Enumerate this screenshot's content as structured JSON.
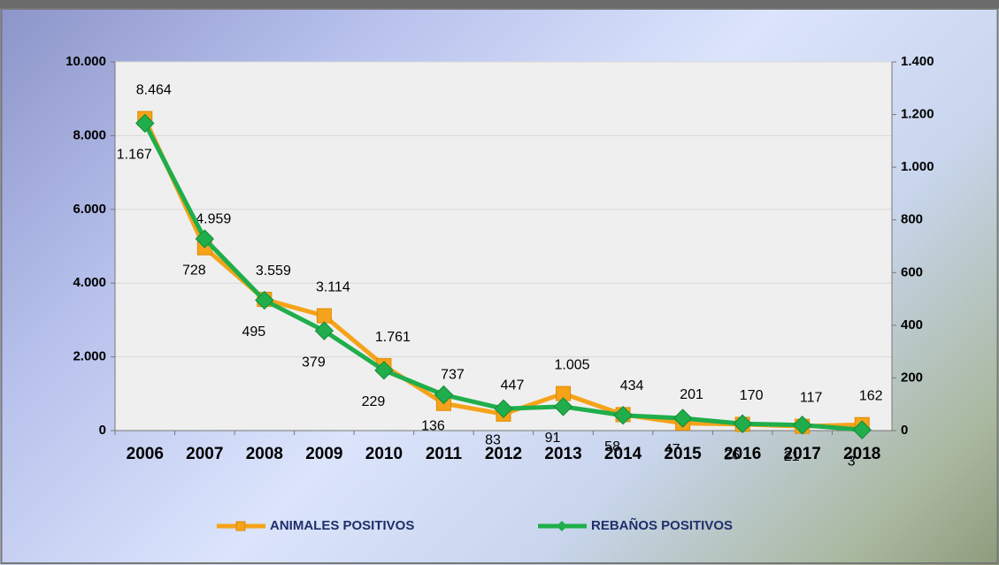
{
  "chart_data": {
    "type": "line",
    "categories": [
      "2006",
      "2007",
      "2008",
      "2009",
      "2010",
      "2011",
      "2012",
      "2013",
      "2014",
      "2015",
      "2016",
      "2017",
      "2018"
    ],
    "series": [
      {
        "name": "ANIMALES POSITIVOS",
        "color": "#f5a31a",
        "values": [
          8464,
          4959,
          3559,
          3114,
          1761,
          737,
          447,
          1005,
          434,
          201,
          170,
          117,
          162
        ],
        "value_labels": [
          "8.464",
          "4.959",
          "3.559",
          "3.114",
          "1.761",
          "737",
          "447",
          "1.005",
          "434",
          "201",
          "170",
          "117",
          "162"
        ]
      },
      {
        "name": "REBAÑOS POSITIVOS",
        "color": "#1fae4b",
        "axis": "y2",
        "values": [
          1167,
          728,
          495,
          379,
          229,
          136,
          83,
          91,
          58,
          47,
          26,
          21,
          3
        ],
        "value_labels": [
          "1.167",
          "728",
          "495",
          "379",
          "229",
          "136",
          "83",
          "91",
          "58",
          "47",
          "26",
          "21",
          "3"
        ]
      }
    ],
    "ylim": [
      0,
      10000
    ],
    "yticks": [
      0,
      {
        "value": 2000,
        "label": "2.000"
      },
      {
        "value": 4000,
        "label": "4.000"
      },
      {
        "value": 6000,
        "label": "6.000"
      },
      {
        "value": 8000,
        "label": "8.000"
      },
      {
        "value": 10000,
        "label": "10.000"
      }
    ],
    "y2lim": [
      0,
      1400
    ],
    "y2ticks": [
      0,
      200,
      400,
      600,
      800,
      {
        "value": 1000,
        "label": "1.000"
      },
      {
        "value": 1200,
        "label": "1.200"
      },
      {
        "value": 1400,
        "label": "1.400"
      }
    ],
    "grid": true
  }
}
